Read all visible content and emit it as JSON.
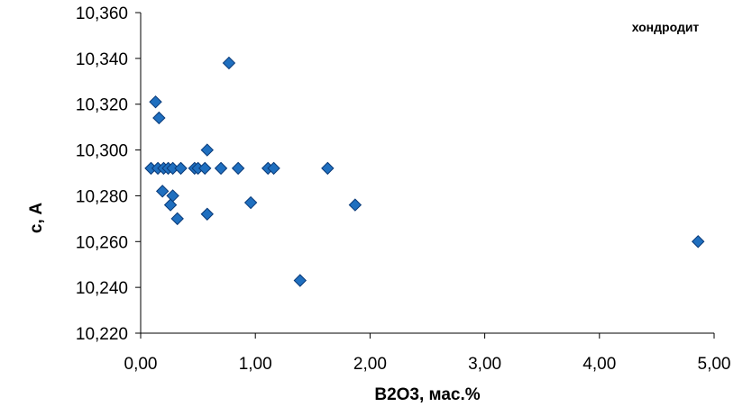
{
  "chart_data": {
    "type": "scatter",
    "title": "",
    "annotation": "хондродит",
    "xlabel": "B2O3, мас.%",
    "ylabel": "c, A",
    "xlim": [
      0,
      5
    ],
    "ylim": [
      10.22,
      10.36
    ],
    "x_ticks": [
      0,
      1,
      2,
      3,
      4,
      5
    ],
    "x_tick_labels": [
      "0,00",
      "1,00",
      "2,00",
      "3,00",
      "4,00",
      "5,00"
    ],
    "y_ticks": [
      10.22,
      10.24,
      10.26,
      10.28,
      10.3,
      10.32,
      10.34,
      10.36
    ],
    "y_tick_labels": [
      "10,220",
      "10,240",
      "10,260",
      "10,280",
      "10,300",
      "10,320",
      "10,340",
      "10,360"
    ],
    "grid": false,
    "marker": "diamond",
    "marker_color": "#1F6FBF",
    "marker_edge": "#0A3A78",
    "series": [
      {
        "points": [
          [
            0.09,
            10.292
          ],
          [
            0.15,
            10.292
          ],
          [
            0.2,
            10.292
          ],
          [
            0.24,
            10.292
          ],
          [
            0.28,
            10.292
          ],
          [
            0.35,
            10.292
          ],
          [
            0.47,
            10.292
          ],
          [
            0.5,
            10.292
          ],
          [
            0.56,
            10.292
          ],
          [
            0.7,
            10.292
          ],
          [
            0.85,
            10.292
          ],
          [
            1.11,
            10.292
          ],
          [
            1.16,
            10.292
          ],
          [
            1.63,
            10.292
          ],
          [
            0.13,
            10.321
          ],
          [
            0.16,
            10.314
          ],
          [
            0.77,
            10.338
          ],
          [
            0.58,
            10.3
          ],
          [
            0.19,
            10.282
          ],
          [
            0.28,
            10.28
          ],
          [
            0.26,
            10.276
          ],
          [
            0.32,
            10.27
          ],
          [
            0.58,
            10.272
          ],
          [
            0.96,
            10.277
          ],
          [
            1.87,
            10.276
          ],
          [
            1.39,
            10.243
          ],
          [
            4.86,
            10.26
          ]
        ]
      }
    ]
  }
}
